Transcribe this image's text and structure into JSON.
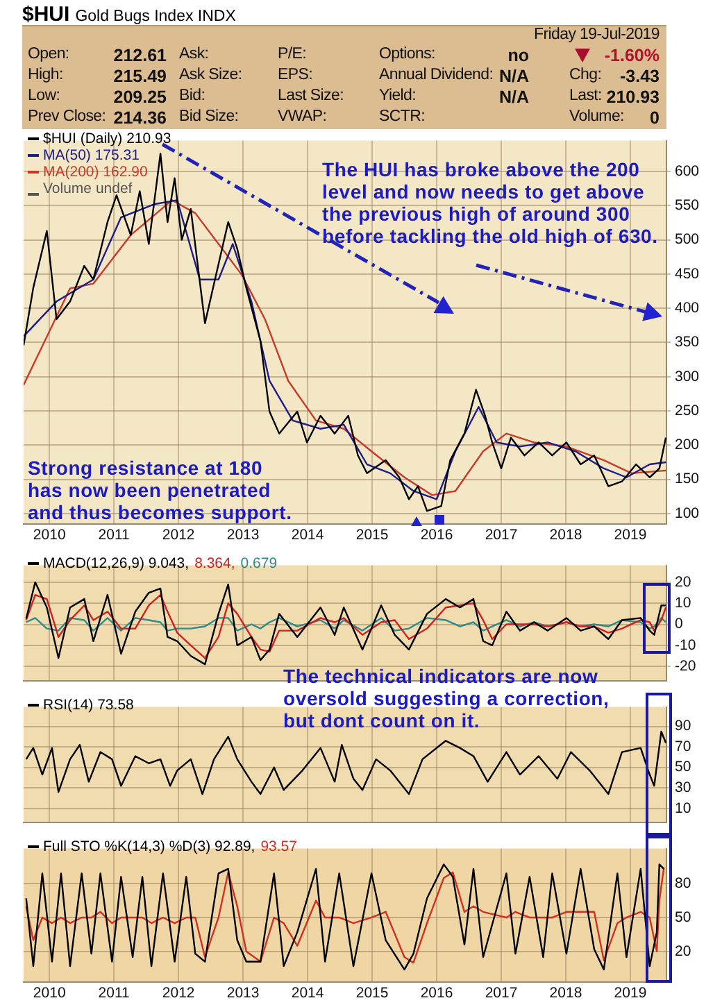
{
  "chart_data": [
    {
      "type": "other",
      "title": "$HUI",
      "subtitle": "Gold Bugs Index INDX",
      "annotations": [
        "Friday 19-Jul-2019",
        "Open:",
        "212.61",
        "Ask:",
        "P/E:",
        "Options:",
        "no",
        "-1.60%",
        "High:",
        "215.49",
        "Ask Size:",
        "EPS:",
        "Annual Dividend:",
        "N/A",
        "Chg:",
        "-3.43",
        "Low:",
        "209.25",
        "Bid:",
        "Last Size:",
        "Yield:",
        "N/A",
        "Last:",
        "210.93",
        "Prev Close:",
        "214.36",
        "Bid Size:",
        "VWAP:",
        "SCTR:",
        "Volume:",
        "0"
      ]
    },
    {
      "type": "line",
      "x": [
        2009.6,
        2009.75,
        2009.96,
        2010.11,
        2010.32,
        2010.54,
        2010.68,
        2010.9,
        2011.04,
        2011.26,
        2011.4,
        2011.54,
        2011.72,
        2011.83,
        2011.94,
        2012.05,
        2012.19,
        2012.41,
        2012.55,
        2012.77,
        2012.91,
        2013.05,
        2013.27,
        2013.41,
        2013.56,
        2013.84,
        2013.99,
        2014.2,
        2014.42,
        2014.63,
        2014.78,
        2014.92,
        2015.21,
        2015.42,
        2015.57,
        2015.71,
        2015.85,
        2016.07,
        2016.21,
        2016.43,
        2016.61,
        2016.75,
        2016.86,
        2017.0,
        2017.15,
        2017.36,
        2017.58,
        2017.79,
        2018.01,
        2018.23,
        2018.44,
        2018.66,
        2018.87,
        2019.09,
        2019.3,
        2019.45,
        2019.55
      ],
      "series": [
        {
          "name": "$HUI (Daily) 210.93",
          "color": "#000000",
          "values": [
            346,
            430,
            513,
            384,
            410,
            462,
            442,
            526,
            565,
            507,
            571,
            494,
            626,
            526,
            590,
            500,
            545,
            378,
            436,
            526,
            487,
            430,
            352,
            249,
            217,
            249,
            204,
            243,
            217,
            243,
            185,
            159,
            178,
            153,
            121,
            140,
            104,
            111,
            178,
            217,
            281,
            243,
            204,
            166,
            211,
            185,
            204,
            185,
            204,
            172,
            185,
            140,
            147,
            172,
            153,
            166,
            211
          ]
        },
        {
          "name": "MA(50) 175.31",
          "color": "#1c1c8a",
          "x": [
            2009.6,
            2010.11,
            2010.68,
            2011.11,
            2011.62,
            2011.98,
            2012.33,
            2012.62,
            2012.84,
            2013.13,
            2013.41,
            2013.77,
            2014.2,
            2014.56,
            2014.92,
            2015.28,
            2015.64,
            2016.0,
            2016.29,
            2016.65,
            2016.93,
            2017.29,
            2017.72,
            2018.15,
            2018.59,
            2018.94,
            2019.3,
            2019.55
          ],
          "values": [
            359,
            410,
            442,
            533,
            552,
            558,
            442,
            442,
            494,
            410,
            294,
            236,
            224,
            230,
            172,
            159,
            133,
            121,
            191,
            256,
            204,
            198,
            204,
            191,
            166,
            153,
            172,
            175
          ]
        },
        {
          "name": "MA(200) 162.90",
          "color": "#c83a2a",
          "x": [
            2009.6,
            2010.32,
            2010.68,
            2011.26,
            2011.9,
            2012.26,
            2012.62,
            2012.98,
            2013.34,
            2013.7,
            2014.13,
            2014.56,
            2014.99,
            2015.5,
            2015.93,
            2016.29,
            2016.72,
            2017.08,
            2017.51,
            2018.01,
            2018.59,
            2019.02,
            2019.55
          ],
          "values": [
            288,
            429,
            436,
            507,
            558,
            539,
            494,
            449,
            384,
            294,
            236,
            224,
            191,
            153,
            127,
            133,
            191,
            217,
            204,
            198,
            178,
            159,
            163
          ]
        }
      ],
      "xlim": [
        2009.6,
        2019.56
      ],
      "xticks": [
        2010,
        2011,
        2012,
        2013,
        2014,
        2015,
        2016,
        2017,
        2018,
        2019
      ],
      "ylim": [
        85,
        645
      ],
      "yticks": [
        100,
        150,
        200,
        250,
        300,
        350,
        400,
        450,
        500,
        550,
        600
      ],
      "grid": true,
      "legend": "top left",
      "annotations": [
        "The HUI has broke above the 200 level and now needs to get above the previous high of around 300 before tackling the old high of 630.",
        "Strong resistance at 180 has now been penetrated and thus becomes support.",
        "Volume undef"
      ]
    },
    {
      "type": "line",
      "x": [
        2009.64,
        2009.78,
        2009.96,
        2010.14,
        2010.32,
        2010.54,
        2010.68,
        2010.9,
        2011.11,
        2011.33,
        2011.54,
        2011.72,
        2011.83,
        2011.98,
        2012.19,
        2012.41,
        2012.62,
        2012.77,
        2012.91,
        2013.13,
        2013.27,
        2013.41,
        2013.56,
        2013.84,
        2014.2,
        2014.42,
        2014.56,
        2014.85,
        2015.14,
        2015.35,
        2015.57,
        2015.85,
        2016.14,
        2016.36,
        2016.57,
        2016.72,
        2016.86,
        2017.08,
        2017.29,
        2017.51,
        2017.72,
        2018.01,
        2018.23,
        2018.44,
        2018.66,
        2018.87,
        2019.16,
        2019.3,
        2019.37,
        2019.48,
        2019.55
      ],
      "series": [
        {
          "name": "MACD(12,26,9) 9.043,",
          "color": "#000000",
          "values": [
            2.7,
            20,
            8,
            -16,
            8,
            12,
            -8,
            14,
            -14,
            6,
            15,
            17,
            -6,
            -8,
            -15,
            -19,
            5,
            19,
            -10,
            -6,
            -17,
            -12,
            5,
            -6,
            8,
            -5,
            8,
            -12,
            9,
            -5,
            -12,
            5,
            12,
            8,
            12,
            -8,
            -10,
            6,
            -3,
            1,
            -3,
            3,
            -3,
            -1,
            -7,
            2,
            3,
            -3,
            -5,
            9,
            9
          ]
        },
        {
          "name": "8.364,",
          "color": "#cc2222",
          "values": [
            2,
            14,
            12,
            -6,
            2,
            9,
            2,
            6,
            -2,
            -2,
            9,
            14,
            6,
            -4,
            -10,
            -16,
            -6,
            10,
            5,
            -6,
            -12,
            -13,
            -3,
            -3,
            3,
            1,
            3,
            -5,
            1,
            2,
            -7,
            -2,
            8,
            9,
            10,
            2,
            -7,
            0,
            0,
            0,
            -1,
            1,
            -1,
            -1,
            -4,
            -2,
            2,
            1,
            -3,
            2,
            8
          ]
        },
        {
          "name": "0.679",
          "color": "#2e8b8b",
          "values": [
            1,
            3,
            -2,
            -3,
            3,
            2,
            -3,
            3,
            -3,
            3,
            2,
            1,
            -3,
            -2,
            -2,
            -1,
            3,
            3,
            -3,
            0,
            -2,
            1,
            3,
            -1,
            2,
            -2,
            2,
            -3,
            3,
            -3,
            -2,
            3,
            2,
            -1,
            1,
            -3,
            -1,
            2,
            -1,
            1,
            -1,
            1,
            -1,
            0,
            -1,
            2,
            1,
            -2,
            -1,
            3,
            1
          ]
        }
      ],
      "xlim": [
        2009.6,
        2019.56
      ],
      "xticks": [
        2010,
        2011,
        2012,
        2013,
        2014,
        2015,
        2016,
        2017,
        2018,
        2019
      ],
      "ylim": [
        -27,
        28
      ],
      "yticks": [
        -20,
        -10,
        0,
        10,
        20
      ],
      "grid": true,
      "legend": "top left",
      "tick_labels": "y"
    },
    {
      "type": "line",
      "x": [
        2009.64,
        2009.75,
        2009.89,
        2010.04,
        2010.14,
        2010.32,
        2010.47,
        2010.61,
        2010.79,
        2010.97,
        2011.11,
        2011.33,
        2011.54,
        2011.72,
        2011.87,
        2011.98,
        2012.19,
        2012.37,
        2012.55,
        2012.77,
        2012.91,
        2013.13,
        2013.27,
        2013.48,
        2013.63,
        2013.92,
        2014.2,
        2014.42,
        2014.53,
        2014.71,
        2014.85,
        2015.06,
        2015.28,
        2015.57,
        2015.78,
        2016.14,
        2016.36,
        2016.57,
        2016.79,
        2017.08,
        2017.29,
        2017.58,
        2017.87,
        2018.08,
        2018.37,
        2018.66,
        2018.87,
        2019.16,
        2019.3,
        2019.37,
        2019.48,
        2019.55
      ],
      "series": [
        {
          "name": "RSI(14) 73.58",
          "color": "#000000",
          "values": [
            58,
            69,
            43,
            69,
            26,
            58,
            72,
            36,
            65,
            58,
            32,
            61,
            54,
            58,
            32,
            47,
            58,
            24,
            58,
            80,
            58,
            36,
            24,
            50,
            28,
            47,
            69,
            36,
            72,
            39,
            28,
            58,
            47,
            24,
            58,
            76,
            69,
            61,
            36,
            65,
            43,
            61,
            39,
            65,
            47,
            24,
            65,
            69,
            43,
            32,
            85,
            74
          ]
        }
      ],
      "xlim": [
        2009.6,
        2019.56
      ],
      "xticks": [
        2010,
        2011,
        2012,
        2013,
        2014,
        2015,
        2016,
        2017,
        2018,
        2019
      ],
      "ylim": [
        -4,
        109
      ],
      "yticks": [
        10,
        30,
        50,
        70,
        90
      ],
      "grid": true,
      "legend": "top left",
      "tick_labels": "y",
      "annotations": [
        "The technical indicators are now oversold suggesting a correction, but dont count on it."
      ]
    },
    {
      "type": "line",
      "x": [
        2009.64,
        2009.75,
        2009.89,
        2010.04,
        2010.18,
        2010.32,
        2010.5,
        2010.65,
        2010.79,
        2010.97,
        2011.11,
        2011.29,
        2011.44,
        2011.58,
        2011.76,
        2011.94,
        2012.12,
        2012.26,
        2012.41,
        2012.62,
        2012.77,
        2012.91,
        2013.05,
        2013.27,
        2013.48,
        2013.63,
        2013.84,
        2014.13,
        2014.27,
        2014.49,
        2014.71,
        2014.99,
        2015.21,
        2015.5,
        2015.64,
        2015.85,
        2016.11,
        2016.25,
        2016.43,
        2016.57,
        2016.72,
        2017.08,
        2017.22,
        2017.44,
        2017.65,
        2017.79,
        2018.01,
        2018.23,
        2018.44,
        2018.59,
        2018.8,
        2018.94,
        2019.16,
        2019.3,
        2019.41,
        2019.45,
        2019.52
      ],
      "series": [
        {
          "name": "Full STO %K(14,3) %D(3) 92.89,",
          "color": "#000000",
          "values": [
            67,
            7,
            89,
            11,
            89,
            7,
            89,
            18,
            89,
            11,
            86,
            15,
            86,
            7,
            89,
            11,
            86,
            18,
            11,
            89,
            93,
            30,
            11,
            11,
            89,
            7,
            37,
            93,
            11,
            89,
            7,
            89,
            30,
            4,
            18,
            67,
            97,
            86,
            26,
            93,
            15,
            89,
            18,
            86,
            15,
            89,
            18,
            93,
            22,
            4,
            89,
            15,
            93,
            7,
            37,
            97,
            93
          ]
        },
        {
          "name": "93.57",
          "color": "#d03020",
          "values": [
            60,
            30,
            50,
            45,
            50,
            45,
            50,
            50,
            55,
            45,
            50,
            50,
            50,
            45,
            50,
            45,
            50,
            50,
            15,
            50,
            90,
            60,
            20,
            11,
            50,
            45,
            25,
            65,
            50,
            50,
            45,
            50,
            55,
            15,
            10,
            45,
            85,
            90,
            55,
            60,
            55,
            50,
            55,
            50,
            50,
            50,
            55,
            55,
            55,
            12,
            45,
            50,
            55,
            50,
            20,
            65,
            94
          ]
        }
      ],
      "xlim": [
        2009.6,
        2019.56
      ],
      "xticks": [
        2010,
        2011,
        2012,
        2013,
        2014,
        2015,
        2016,
        2017,
        2018,
        2019
      ],
      "ylim": [
        -7,
        111
      ],
      "yticks": [
        20,
        50,
        80
      ],
      "grid": true,
      "legend": "top left"
    }
  ]
}
